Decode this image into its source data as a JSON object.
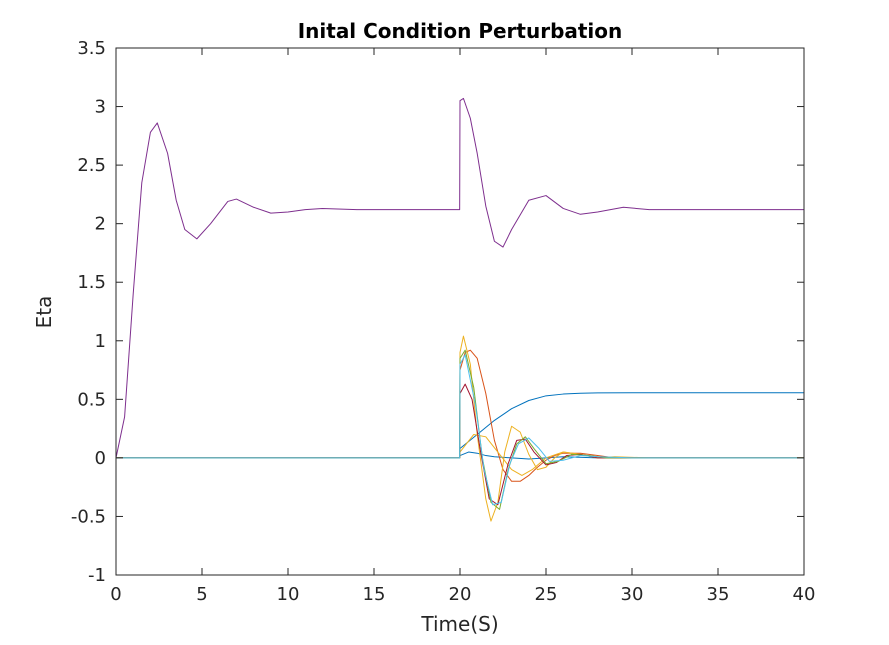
{
  "chart_data": {
    "type": "line",
    "title": "Inital Condition Perturbation",
    "xlabel": "Time(S)",
    "ylabel": "Eta",
    "xlim": [
      0,
      40
    ],
    "ylim": [
      -1,
      3.5
    ],
    "xticks": [
      0,
      5,
      10,
      15,
      20,
      25,
      30,
      35,
      40
    ],
    "yticks": [
      -1,
      -0.5,
      0,
      0.5,
      1,
      1.5,
      2,
      2.5,
      3,
      3.5
    ],
    "xtick_labels": [
      "0",
      "5",
      "10",
      "15",
      "20",
      "25",
      "30",
      "35",
      "40"
    ],
    "ytick_labels": [
      "-1",
      "-0.5",
      "0",
      "0.5",
      "1",
      "1.5",
      "2",
      "2.5",
      "3",
      "3.5"
    ],
    "grid": false,
    "legend": "none",
    "series": [
      {
        "color": "#7E2F8E",
        "x": [
          0,
          0.5,
          1,
          1.5,
          2,
          2.4,
          3,
          3.5,
          4,
          4.7,
          5.5,
          6.5,
          7,
          8,
          9,
          10,
          11,
          12,
          14,
          16,
          19.98,
          20,
          20.2,
          20.6,
          21,
          21.5,
          22,
          22.5,
          23,
          24,
          25,
          26,
          27,
          28,
          29.5,
          31,
          33,
          36,
          40
        ],
        "y": [
          0,
          0.35,
          1.4,
          2.35,
          2.78,
          2.86,
          2.6,
          2.2,
          1.95,
          1.87,
          2.0,
          2.19,
          2.21,
          2.14,
          2.09,
          2.1,
          2.12,
          2.13,
          2.12,
          2.12,
          2.12,
          3.05,
          3.07,
          2.9,
          2.6,
          2.15,
          1.85,
          1.8,
          1.95,
          2.2,
          2.24,
          2.13,
          2.08,
          2.1,
          2.14,
          2.12,
          2.12,
          2.12,
          2.12
        ]
      },
      {
        "color": "#0072BD",
        "x": [
          0,
          19.98,
          20,
          21,
          22,
          23,
          24,
          25,
          26,
          27,
          28,
          30,
          33,
          40
        ],
        "y": [
          0,
          0,
          0.08,
          0.2,
          0.32,
          0.42,
          0.49,
          0.53,
          0.545,
          0.552,
          0.555,
          0.556,
          0.556,
          0.556
        ]
      },
      {
        "color": "#0072BD",
        "x": [
          0,
          19.98,
          20,
          20.5,
          21,
          21.5,
          22,
          23,
          24,
          25,
          26,
          28,
          30,
          40
        ],
        "y": [
          0,
          0,
          0.02,
          0.05,
          0.04,
          0.02,
          0.01,
          0.0,
          -0.01,
          0.0,
          0.01,
          0.0,
          0.0,
          0.0
        ]
      },
      {
        "color": "#D95319",
        "x": [
          0,
          19.98,
          20,
          20.3,
          20.6,
          21,
          21.5,
          22,
          22.5,
          23,
          23.5,
          24,
          24.5,
          25,
          25.5,
          26,
          27,
          28,
          29,
          30,
          32,
          35,
          40
        ],
        "y": [
          0,
          0,
          0.75,
          0.9,
          0.92,
          0.85,
          0.55,
          0.15,
          -0.1,
          -0.2,
          -0.2,
          -0.15,
          -0.08,
          -0.02,
          0.02,
          0.04,
          0.04,
          0.02,
          0.0,
          0.0,
          0.0,
          0.0,
          0.0
        ]
      },
      {
        "color": "#EDB120",
        "x": [
          0,
          19.98,
          20,
          20.2,
          20.6,
          21,
          21.5,
          21.8,
          22.2,
          22.6,
          23.0,
          23.5,
          24,
          24.5,
          25,
          25.5,
          26,
          27,
          28,
          29,
          31,
          34,
          40
        ],
        "y": [
          0,
          0,
          0.9,
          1.04,
          0.8,
          0.2,
          -0.35,
          -0.54,
          -0.38,
          0.05,
          0.27,
          0.22,
          0.03,
          -0.1,
          -0.08,
          0.0,
          0.05,
          0.03,
          0.0,
          0.01,
          0.0,
          0.0,
          0.0
        ]
      },
      {
        "color": "#EDB120",
        "x": [
          0,
          19.98,
          20,
          20.8,
          21.5,
          22.2,
          23,
          23.6,
          24.2,
          25,
          26,
          27,
          28,
          30,
          33,
          40
        ],
        "y": [
          0,
          0,
          0.05,
          0.2,
          0.18,
          0.05,
          -0.1,
          -0.15,
          -0.1,
          0.0,
          0.05,
          0.03,
          0.0,
          0.0,
          0.0,
          0.0
        ]
      },
      {
        "color": "#A2142F",
        "x": [
          0,
          19.98,
          20,
          20.3,
          20.7,
          21.2,
          21.7,
          22.2,
          22.8,
          23.3,
          23.8,
          24.3,
          25,
          25.6,
          26.2,
          27,
          28,
          29,
          31,
          34,
          40
        ],
        "y": [
          0,
          0,
          0.55,
          0.63,
          0.5,
          0.05,
          -0.35,
          -0.4,
          -0.05,
          0.15,
          0.16,
          0.05,
          -0.06,
          -0.04,
          0.02,
          0.03,
          0.0,
          0.0,
          0.0,
          0.0,
          0.0
        ]
      },
      {
        "color": "#77AC30",
        "x": [
          0,
          19.98,
          20,
          20.3,
          20.8,
          21.3,
          21.8,
          22.3,
          22.8,
          23.3,
          23.8,
          24.3,
          25,
          25.7,
          26.5,
          27.5,
          28.5,
          30,
          33,
          40
        ],
        "y": [
          0,
          0,
          0.85,
          0.92,
          0.6,
          0.0,
          -0.38,
          -0.44,
          -0.1,
          0.12,
          0.18,
          0.08,
          -0.05,
          -0.03,
          0.03,
          0.02,
          0.0,
          0.0,
          0.0,
          0.0
        ]
      },
      {
        "color": "#4DBEEE",
        "x": [
          0,
          19.98,
          20,
          20.3,
          20.9,
          21.4,
          21.9,
          22.4,
          22.9,
          23.4,
          24,
          24.6,
          25.2,
          26,
          27,
          28,
          30,
          33,
          40
        ],
        "y": [
          0,
          0,
          0.8,
          0.88,
          0.45,
          -0.1,
          -0.4,
          -0.38,
          -0.05,
          0.12,
          0.17,
          0.08,
          -0.03,
          -0.02,
          0.02,
          0.01,
          0.0,
          0.0,
          0.0
        ]
      }
    ]
  }
}
